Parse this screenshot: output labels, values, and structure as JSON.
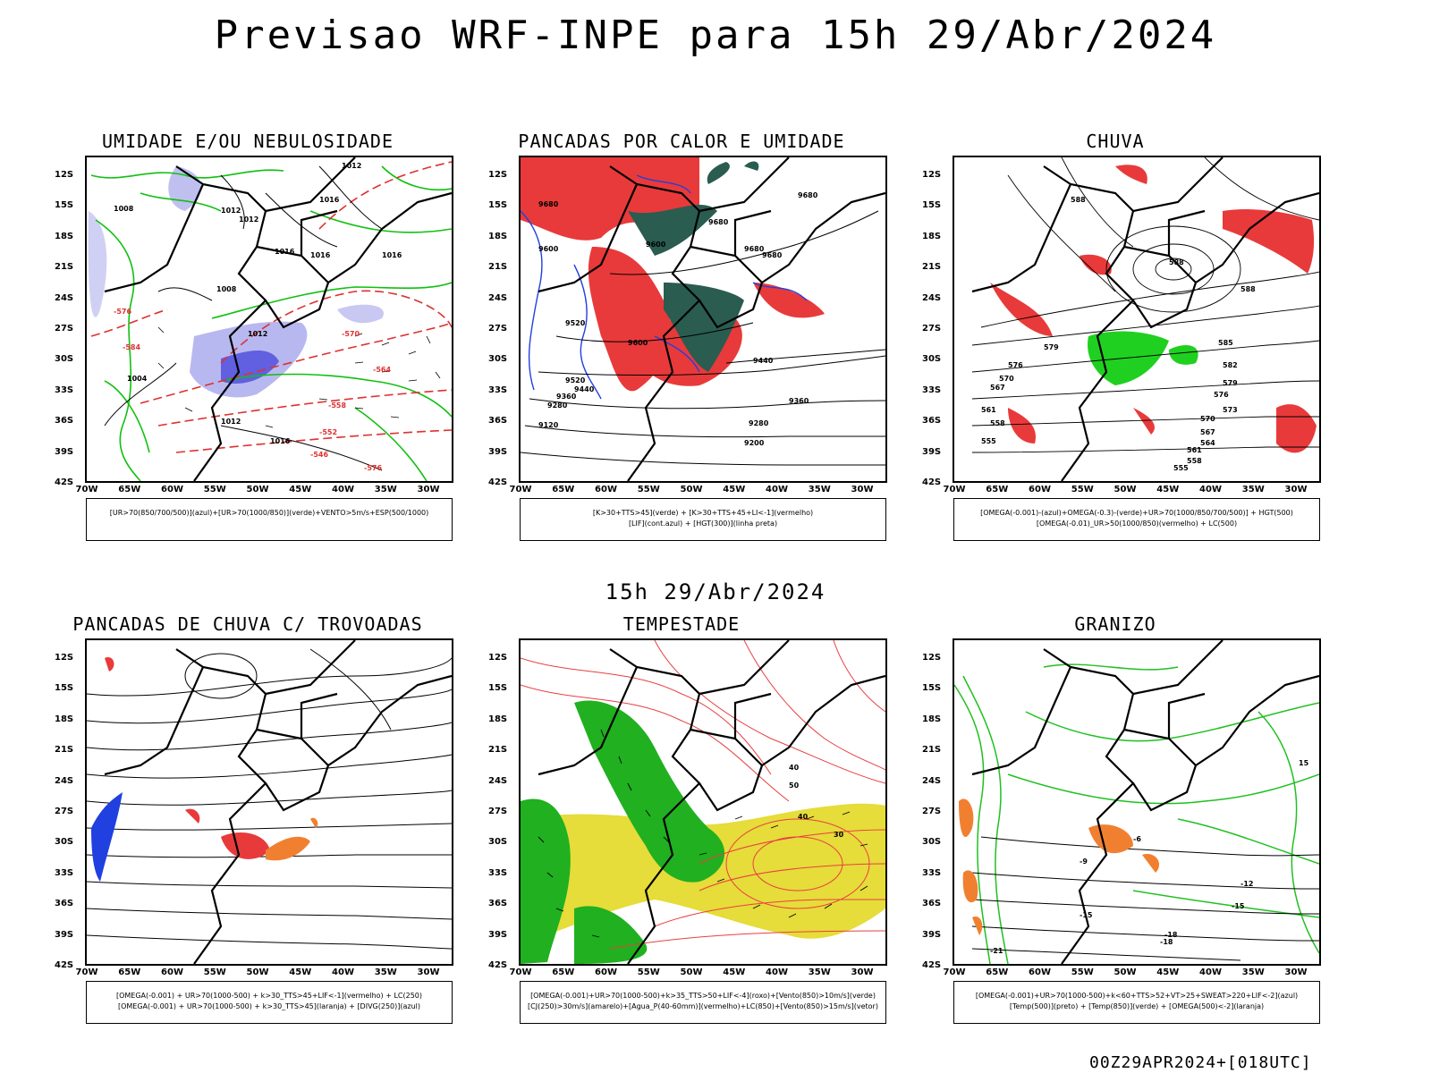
{
  "header": {
    "title": "Previsao WRF-INPE  para 15h 29/Abr/2024"
  },
  "middle_title": "15h 29/Abr/2024",
  "footer": "00Z29APR2024+[018UTC]",
  "axes": {
    "lat_labels": [
      "12S",
      "15S",
      "18S",
      "21S",
      "24S",
      "27S",
      "30S",
      "33S",
      "36S",
      "39S",
      "42S"
    ],
    "lon_labels": [
      "70W",
      "65W",
      "60W",
      "55W",
      "50W",
      "45W",
      "40W",
      "35W",
      "30W"
    ]
  },
  "panels": [
    {
      "title": "UMIDADE E/OU NEBULOSIDADE",
      "legend": [
        "[UR>70(850/700/500)](azul)+[UR>70(1000/850)](verde)+VENTO>5m/s+ESP(500/1000)"
      ],
      "labels": [
        "1012",
        "1012",
        "1012",
        "1016",
        "1016",
        "1008",
        "1008",
        "1012",
        "1016",
        "1016",
        "1004",
        "1012",
        "1016",
        "-576",
        "-570",
        "-564",
        "-558",
        "-552",
        "-546",
        "-576",
        "-584"
      ]
    },
    {
      "title": "PANCADAS POR CALOR E UMIDADE",
      "legend": [
        "[K>30+TTS>45](verde) + [K>30+TTS+45+LI<-1](vermelho)",
        "[LIF](cont.azul) + [HGT(300)](linha preta)"
      ],
      "labels": [
        "9680",
        "9680",
        "9680",
        "9680",
        "9680",
        "9600",
        "9600",
        "9520",
        "9440",
        "9360",
        "9280",
        "9200",
        "9120",
        "9600",
        "9520",
        "9440",
        "9360",
        "9280"
      ]
    },
    {
      "title": "CHUVA",
      "legend": [
        "[OMEGA(-0.001)-(azul)+OMEGA(-0.3)-(verde)+UR>70(1000/850/700/500)] + HGT(500)",
        "[OMEGA(-0.01)_UR>50(1000/850)(vermelho) + LC(500)"
      ],
      "labels": [
        "588",
        "588",
        "588",
        "585",
        "582",
        "579",
        "576",
        "573",
        "570",
        "567",
        "564",
        "561",
        "558",
        "555",
        "579",
        "576",
        "570",
        "567",
        "561",
        "558",
        "555"
      ]
    },
    {
      "title": "PANCADAS DE CHUVA C/ TROVOADAS",
      "legend": [
        "[OMEGA(-0.001) + UR>70(1000-500) + k>30_TTS>45+LIF<-1](vermelho) + LC(250)",
        "[OMEGA(-0.001) + UR>70(1000-500) + k>30_TTS>45](laranja) + [DIVG(250)](azul)"
      ],
      "labels": []
    },
    {
      "title": "TEMPESTADE",
      "legend": [
        "[OMEGA(-0.001)+UR>70(1000-500)+k>35_TTS>50+LIF<-4](roxo)+[Vento(850)>10m/s](verde)",
        "[CJ(250)>30m/s](amarelo)+[Agua_P(40-60mm)](vermelho)+LC(850)+[Vento(850)>15m/s](vetor)"
      ],
      "labels": [
        "40",
        "50",
        "40",
        "30"
      ]
    },
    {
      "title": "GRANIZO",
      "legend": [
        "[OMEGA(-0.001)+UR>70(1000-500)+k<60+TTS>52+VT>25+SWEAT>220+LIF<-2](azul)",
        "[Temp(500)](preto) + [Temp(850)](verde) + [OMEGA(500)<-2](laranja)"
      ],
      "labels": [
        "-12",
        "-15",
        "-15",
        "-18",
        "-18",
        "-21",
        "15",
        "-9",
        "-6"
      ]
    }
  ]
}
